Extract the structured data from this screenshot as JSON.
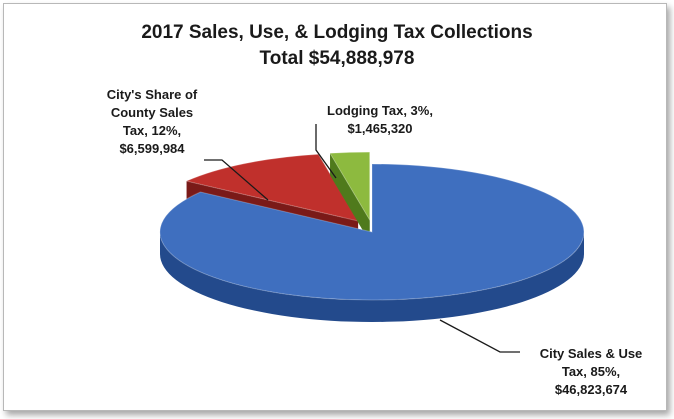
{
  "colors": {
    "city_sales_top": "#3f6fbf",
    "city_sales_side": "#234a8c",
    "county_top": "#c0302c",
    "county_side": "#7a1a18",
    "lodging_top": "#8dba3f",
    "lodging_side": "#4f7a1c",
    "leader": "#1a1a1a"
  },
  "chart_data": {
    "type": "pie",
    "style": "3d-exploded",
    "title": "2017 Sales, Use, & Lodging Tax Collections",
    "subtitle": "Total $54,888,978",
    "slices": [
      {
        "name": "City Sales & Use Tax",
        "percent": 85,
        "value": 46823674,
        "label_lines": [
          "City Sales & Use",
          "Tax, 85%,",
          "$46,823,674"
        ]
      },
      {
        "name": "City's Share of County Sales Tax",
        "percent": 12,
        "value": 6599984,
        "label_lines": [
          "City's Share of",
          "County Sales",
          "Tax, 12%,",
          "$6,599,984"
        ]
      },
      {
        "name": "Lodging Tax",
        "percent": 3,
        "value": 1465320,
        "label_lines": [
          "Lodging Tax, 3%,",
          "$1,465,320"
        ]
      }
    ]
  }
}
